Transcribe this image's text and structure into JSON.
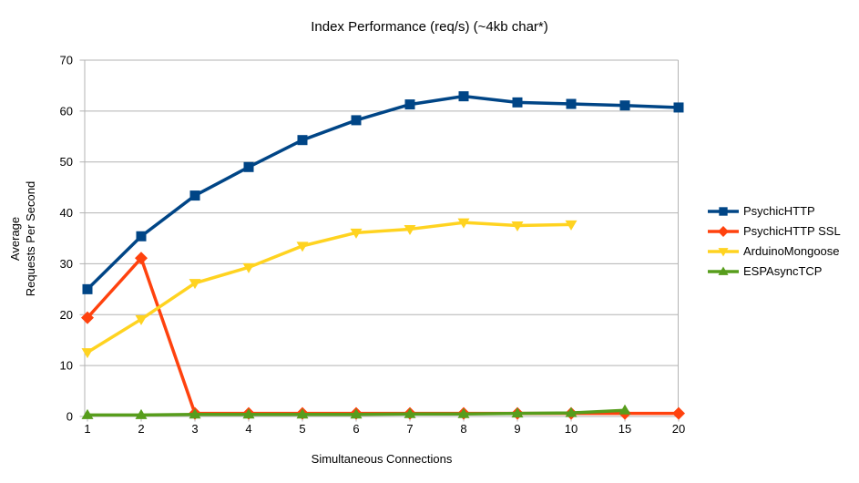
{
  "chart_data": {
    "type": "line",
    "title": "Index Performance (req/s) (~4kb char*)",
    "xlabel": "Simultaneous Connections",
    "ylabel_lines": [
      "Average",
      "Requests Per Second"
    ],
    "categories": [
      "1",
      "2",
      "3",
      "4",
      "5",
      "6",
      "7",
      "8",
      "9",
      "10",
      "15",
      "20"
    ],
    "y_ticks": [
      0,
      10,
      20,
      30,
      40,
      50,
      60,
      70
    ],
    "ylim": [
      0,
      70
    ],
    "grid": "horizontal",
    "grid_color": "#b3b3b3",
    "axis_color": "#b3b3b3",
    "text_color": "#000000",
    "background_color": "#ffffff",
    "legend_position": "right",
    "series": [
      {
        "name": "PsychicHTTP",
        "color": "#004586",
        "marker": "square",
        "values": [
          25,
          35.4,
          43.4,
          49,
          54.3,
          58.2,
          61.3,
          62.9,
          61.7,
          61.4,
          61.1,
          60.7
        ]
      },
      {
        "name": "PsychicHTTP SSL",
        "color": "#ff420e",
        "marker": "diamond",
        "values": [
          19.4,
          31.1,
          0.6,
          0.6,
          0.6,
          0.6,
          0.6,
          0.6,
          0.6,
          0.6,
          0.6,
          0.6
        ]
      },
      {
        "name": "ArduinoMongoose",
        "color": "#ffd320",
        "marker": "triangle-down",
        "values": [
          12.6,
          19.1,
          26.2,
          29.3,
          33.5,
          36.1,
          36.8,
          38.1,
          37.5,
          37.7,
          null,
          null
        ]
      },
      {
        "name": "ESPAsyncTCP",
        "color": "#579d1c",
        "marker": "triangle-up",
        "values": [
          0.3,
          0.3,
          0.4,
          0.4,
          0.4,
          0.4,
          0.5,
          0.5,
          0.6,
          0.7,
          1.2,
          null
        ]
      }
    ]
  }
}
